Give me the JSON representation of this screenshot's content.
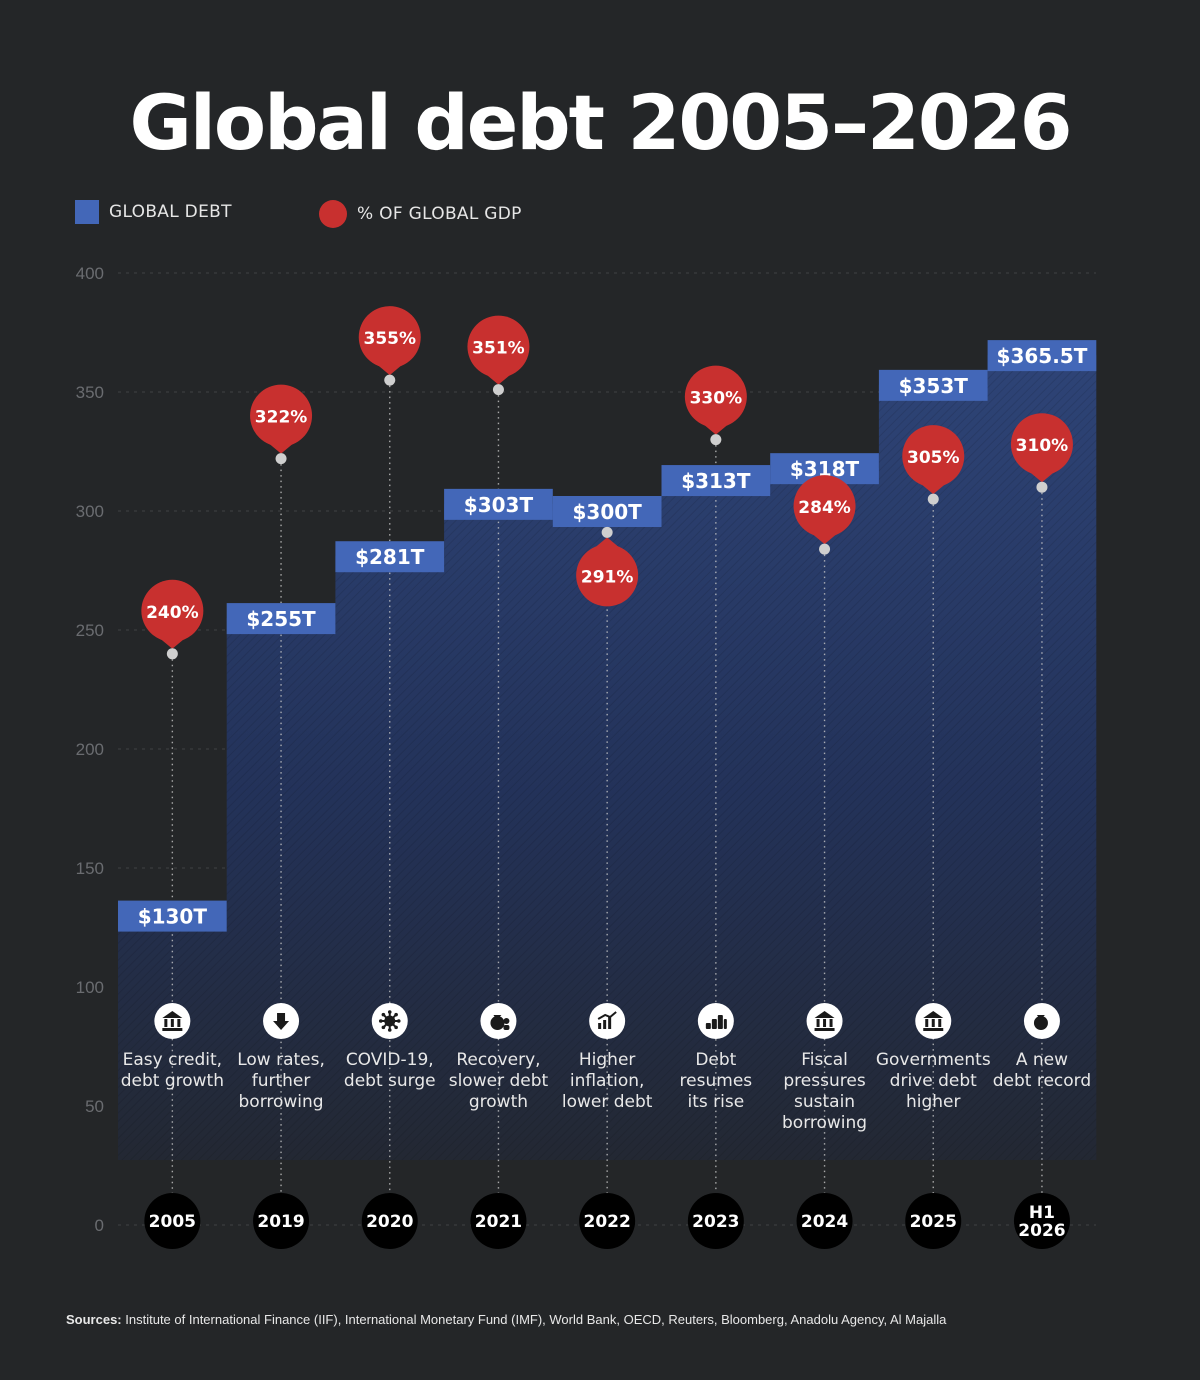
{
  "title": "Global debt 2005–2026",
  "legend": {
    "debt_label": "GLOBAL DEBT",
    "gdp_label": "% OF GLOBAL GDP"
  },
  "colors": {
    "background": "#242628",
    "debt_bar": "#4367b8",
    "gdp_marker": "#c8302f",
    "area_top": "#2e4477",
    "grid": "#555555"
  },
  "chart_data": {
    "type": "bar",
    "categories": [
      "2005",
      "2019",
      "2020",
      "2021",
      "2022",
      "2023",
      "2024",
      "2025",
      "H1 2026"
    ],
    "ylim": [
      0,
      400
    ],
    "y_ticks": [
      "0",
      "50",
      "100",
      "150",
      "200",
      "250",
      "300",
      "350",
      "400"
    ],
    "grid": true,
    "legend_position": "top-left",
    "series": [
      {
        "name": "GLOBAL DEBT",
        "values": [
          130,
          255,
          281,
          303,
          300,
          313,
          318,
          353,
          365.5
        ],
        "labels": [
          "$130T",
          "$255T",
          "$281T",
          "$303T",
          "$300T",
          "$313T",
          "$318T",
          "$353T",
          "$365.5T"
        ]
      },
      {
        "name": "% OF GLOBAL GDP",
        "values": [
          240,
          322,
          355,
          351,
          291,
          330,
          284,
          305,
          310
        ],
        "labels": [
          "240%",
          "322%",
          "355%",
          "351%",
          "291%",
          "330%",
          "284%",
          "305%",
          "310%"
        ]
      }
    ],
    "annotations": [
      {
        "icon": "bank-icon",
        "lines": [
          "Easy credit,",
          "debt growth"
        ]
      },
      {
        "icon": "arrow-down-icon",
        "lines": [
          "Low rates,",
          "further",
          "borrowing"
        ]
      },
      {
        "icon": "virus-icon",
        "lines": [
          "COVID-19,",
          "debt surge"
        ]
      },
      {
        "icon": "money-bag-person-icon",
        "lines": [
          "Recovery,",
          "slower debt",
          "growth"
        ]
      },
      {
        "icon": "chart-up-icon",
        "lines": [
          "Higher",
          "inflation,",
          "lower debt"
        ]
      },
      {
        "icon": "coin-stacks-icon",
        "lines": [
          "Debt",
          "resumes",
          "its rise"
        ]
      },
      {
        "icon": "bank-building-icon",
        "lines": [
          "Fiscal",
          "pressures",
          "sustain",
          "borrowing"
        ]
      },
      {
        "icon": "government-building-icon",
        "lines": [
          "Governments",
          "drive debt",
          "higher"
        ]
      },
      {
        "icon": "money-bag-icon",
        "lines": [
          "A new",
          "debt record"
        ]
      }
    ],
    "year_badges": [
      [
        "2005"
      ],
      [
        "2019"
      ],
      [
        "2020"
      ],
      [
        "2021"
      ],
      [
        "2022"
      ],
      [
        "2023"
      ],
      [
        "2024"
      ],
      [
        "2025"
      ],
      [
        "H1",
        "2026"
      ]
    ]
  },
  "sources": {
    "label": "Sources:",
    "text": "Institute of International Finance (IIF), International Monetary Fund (IMF), World Bank, OECD, Reuters, Bloomberg, Anadolu Agency, Al Majalla"
  }
}
